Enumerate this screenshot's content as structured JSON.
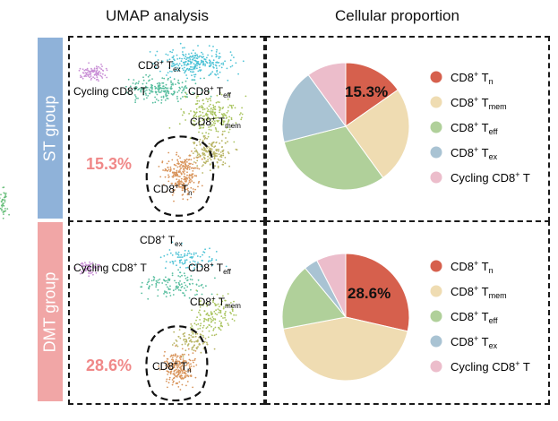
{
  "headers": {
    "umap": "UMAP analysis",
    "proportion": "Cellular proportion"
  },
  "groups": [
    {
      "label": "ST group",
      "color": "#8fb2d9",
      "percent_text": "15.3%"
    },
    {
      "label": "DMT group",
      "color": "#f1a6a6",
      "percent_text": "28.6%"
    }
  ],
  "cluster_labels": {
    "tex": [
      "CD8",
      "+",
      " T",
      "ex"
    ],
    "cycling": [
      "Cycling CD8",
      "+",
      " T"
    ],
    "teff": [
      "CD8",
      "+",
      " T",
      "eff"
    ],
    "tmem": [
      "CD8",
      "+",
      " T",
      "mem"
    ],
    "tn": [
      "CD8",
      "+",
      " T",
      "n"
    ]
  },
  "colors": {
    "tn": "#d6604d",
    "tmem": "#efdcb2",
    "teff": "#b0d09a",
    "tex": "#a9c3d3",
    "cycling": "#ecbdcb",
    "highlight": "#ef8a8a"
  },
  "chart_data": [
    {
      "type": "pie",
      "title": "Cellular proportion",
      "group": "ST group",
      "categories": [
        "CD8+ Tn",
        "CD8+ Tmem",
        "CD8+ Teff",
        "CD8+ Tex",
        "Cycling CD8+ T"
      ],
      "values": [
        15.3,
        24.7,
        31.0,
        19.0,
        10.0
      ],
      "annotation": "15.3%"
    },
    {
      "type": "pie",
      "title": "Cellular proportion",
      "group": "DMT group",
      "categories": [
        "CD8+ Tn",
        "CD8+ Tmem",
        "CD8+ Teff",
        "CD8+ Tex",
        "Cycling CD8+ T"
      ],
      "values": [
        28.6,
        43.4,
        17.0,
        3.5,
        7.5
      ],
      "annotation": "28.6%"
    }
  ],
  "legend": [
    {
      "key": "tn",
      "base": "CD8",
      "sup": "+",
      "mid": " T",
      "sub": "n"
    },
    {
      "key": "tmem",
      "base": "CD8",
      "sup": "+",
      "mid": " T",
      "sub": "mem"
    },
    {
      "key": "teff",
      "base": "CD8",
      "sup": "+",
      "mid": " T",
      "sub": "eff"
    },
    {
      "key": "tex",
      "base": "CD8",
      "sup": "+",
      "mid": " T",
      "sub": "ex"
    },
    {
      "key": "cycling",
      "base": "Cycling CD8",
      "sup": "+",
      "mid": " T",
      "sub": ""
    }
  ]
}
